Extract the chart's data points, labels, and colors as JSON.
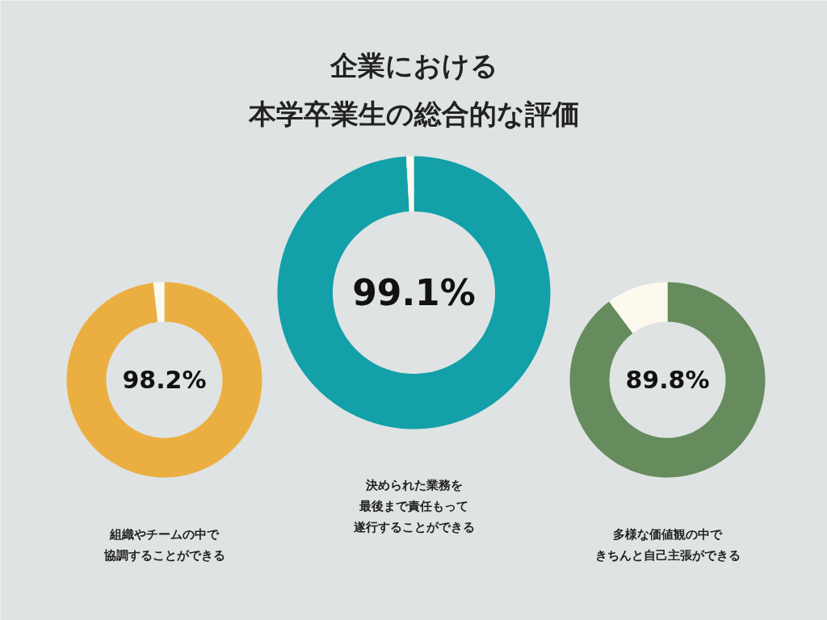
{
  "chart_data": [
    {
      "type": "donut",
      "categories": [
        "組織やチームの中で協調することができる",
        null
      ],
      "values": [
        98.2,
        1.8
      ],
      "colors": [
        "#ebaf41",
        "#fdf9ef"
      ],
      "value_labels": [
        "98.2%",
        null
      ]
    },
    {
      "type": "donut",
      "title": "企業における本学卒業生の総合的な評価",
      "categories": [
        "決められた業務を最後まで責任もって遂行することができる",
        null
      ],
      "values": [
        99.1,
        0.9
      ],
      "colors": [
        "#13a0a9",
        "#fdf9ef"
      ],
      "value_labels": [
        "99.1%",
        null
      ]
    },
    {
      "type": "donut",
      "categories": [
        "多様な価値観の中できちんと自己主張ができる",
        null
      ],
      "values": [
        89.8,
        10.2
      ],
      "colors": [
        "#668b5c",
        "#fdf9ef"
      ],
      "value_labels": [
        "89.8%",
        null
      ]
    }
  ]
}
